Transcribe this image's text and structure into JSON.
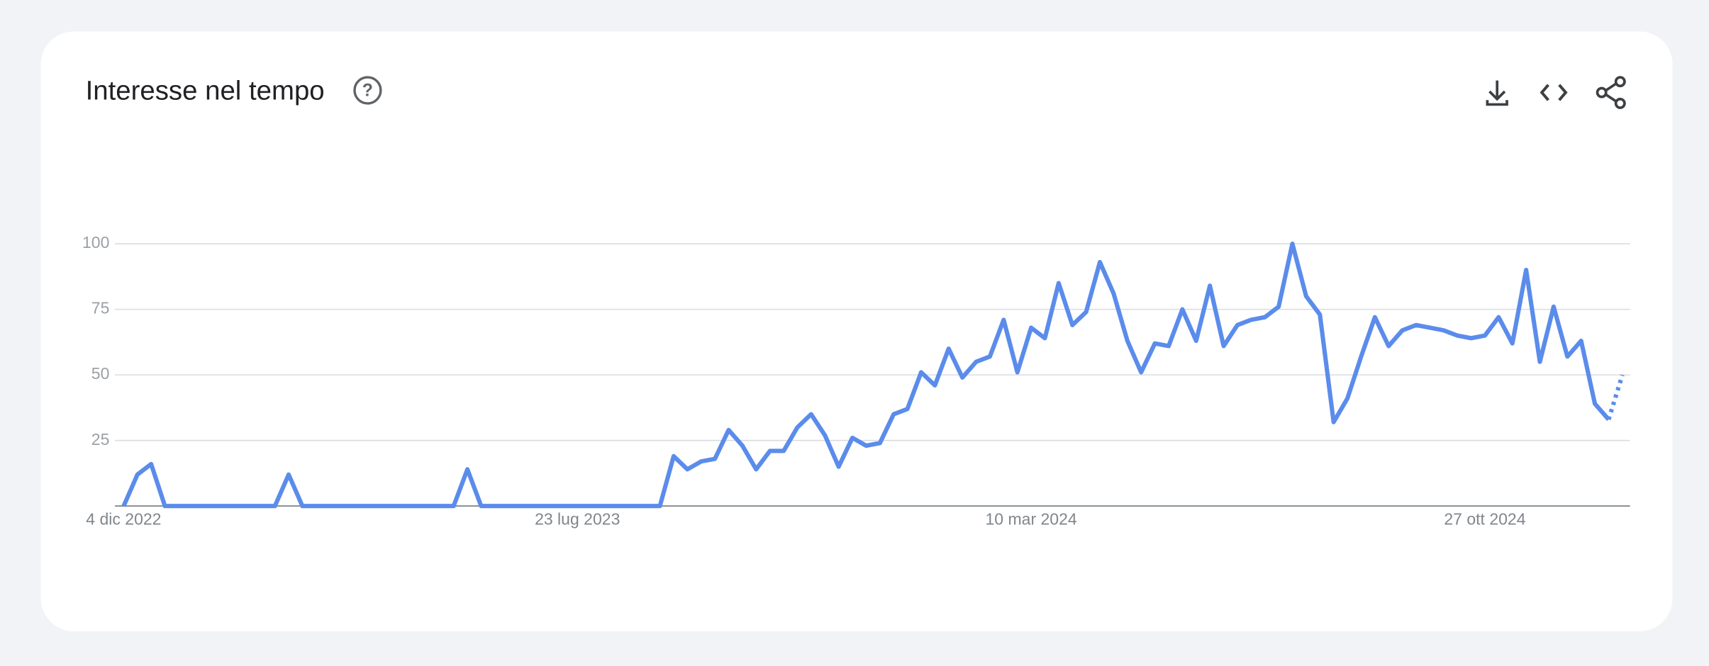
{
  "chart_data": {
    "type": "line",
    "title": "Interesse nel tempo",
    "categories": [
      "4 dic 2022",
      null,
      null,
      null,
      null,
      null,
      null,
      null,
      null,
      null,
      null,
      null,
      null,
      null,
      null,
      null,
      null,
      null,
      null,
      null,
      null,
      null,
      null,
      null,
      null,
      null,
      null,
      null,
      null,
      null,
      null,
      null,
      null,
      "23 lug 2023",
      null,
      null,
      null,
      null,
      null,
      null,
      null,
      null,
      null,
      null,
      null,
      null,
      null,
      null,
      null,
      null,
      null,
      null,
      null,
      null,
      null,
      null,
      null,
      null,
      null,
      null,
      null,
      null,
      null,
      null,
      null,
      null,
      "10 mar 2024",
      null,
      null,
      null,
      null,
      null,
      null,
      null,
      null,
      null,
      null,
      null,
      null,
      null,
      null,
      null,
      null,
      null,
      null,
      null,
      null,
      null,
      null,
      null,
      null,
      null,
      null,
      null,
      null,
      null,
      null,
      null,
      null,
      "27 ott 2024",
      null,
      null,
      null,
      null,
      null,
      null,
      null,
      null,
      null,
      null
    ],
    "series": [
      {
        "color": "#5b8ceb",
        "values": [
          0,
          12,
          16,
          0,
          0,
          0,
          0,
          0,
          0,
          0,
          0,
          0,
          12,
          0,
          0,
          0,
          0,
          0,
          0,
          0,
          0,
          0,
          0,
          0,
          0,
          14,
          0,
          0,
          0,
          0,
          0,
          0,
          0,
          0,
          0,
          0,
          0,
          0,
          0,
          0,
          19,
          14,
          17,
          18,
          29,
          23,
          14,
          21,
          21,
          30,
          35,
          27,
          15,
          26,
          23,
          24,
          35,
          37,
          51,
          46,
          60,
          49,
          55,
          57,
          71,
          51,
          68,
          64,
          85,
          69,
          74,
          93,
          81,
          63,
          51,
          62,
          61,
          75,
          63,
          84,
          61,
          69,
          71,
          72,
          76,
          100,
          80,
          73,
          32,
          41,
          57,
          72,
          61,
          67,
          69,
          68,
          67,
          65,
          64,
          65,
          72,
          62,
          90,
          55,
          76,
          57,
          63,
          39,
          33,
          50
        ]
      }
    ],
    "dotted_last_segment": true,
    "ylim": [
      0,
      100
    ],
    "yticks": [
      25,
      50,
      75,
      100
    ],
    "grid": true
  }
}
